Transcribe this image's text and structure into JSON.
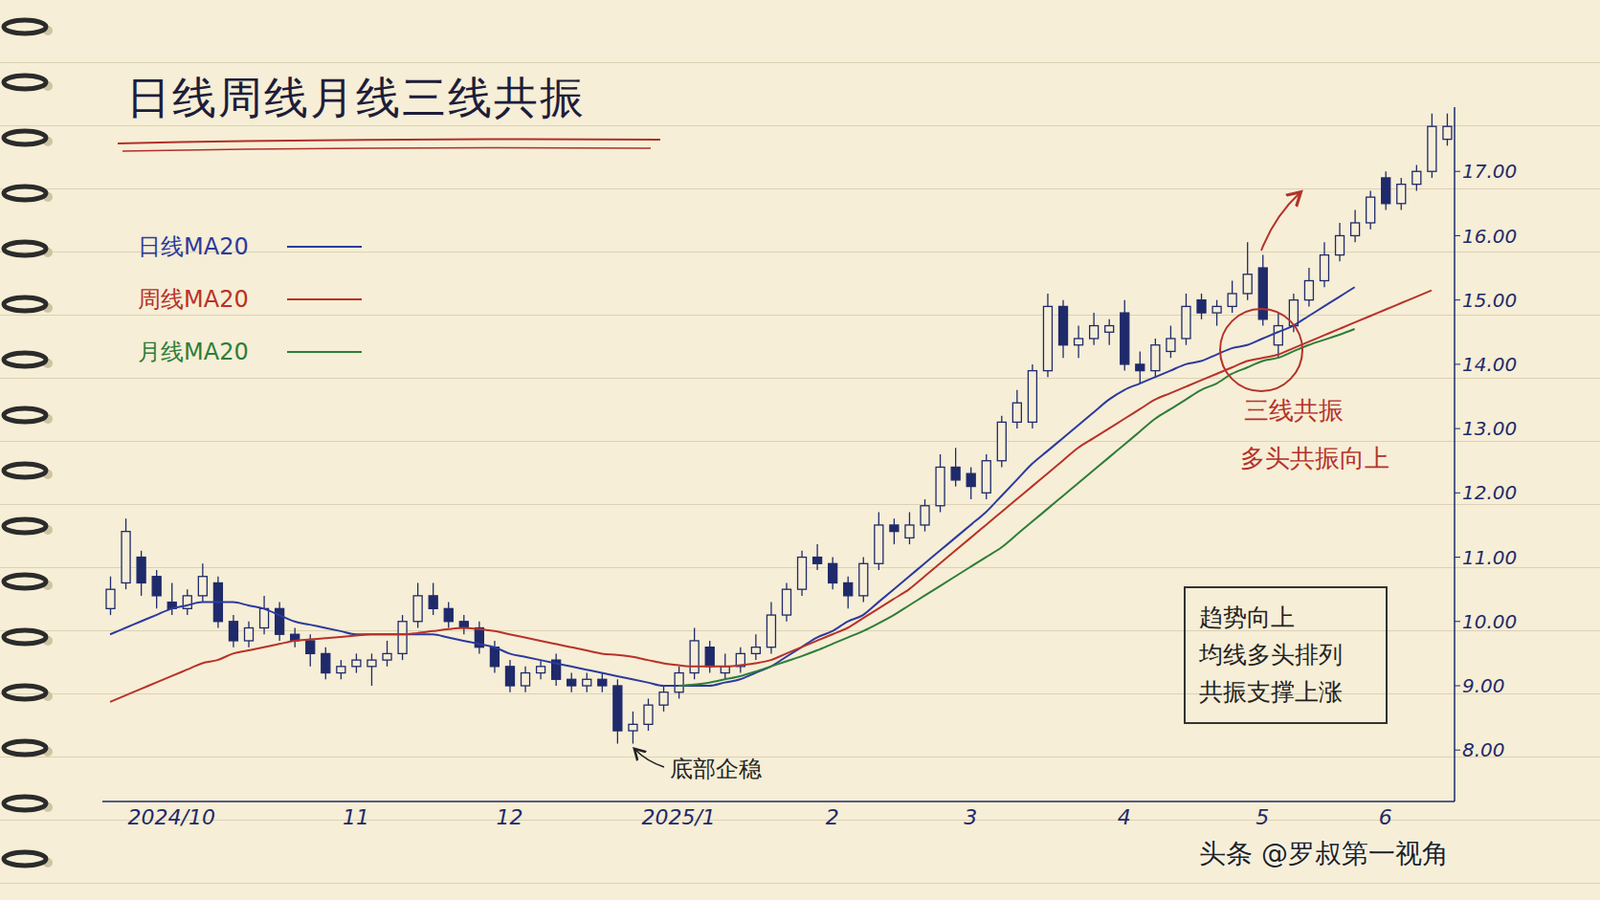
{
  "chart_data": {
    "type": "candlestick",
    "title": "日线周线月线三线共振",
    "categories": [
      null,
      null,
      null,
      null,
      "2024/10",
      null,
      null,
      null,
      null,
      null,
      null,
      null,
      null,
      null,
      null,
      null,
      "11",
      null,
      null,
      null,
      null,
      null,
      null,
      null,
      null,
      null,
      "12",
      null,
      null,
      null,
      null,
      null,
      null,
      null,
      null,
      null,
      null,
      "2025/1",
      null,
      null,
      null,
      null,
      null,
      null,
      null,
      null,
      null,
      "2",
      null,
      null,
      null,
      null,
      null,
      null,
      null,
      null,
      "3",
      null,
      null,
      null,
      null,
      null,
      null,
      null,
      null,
      null,
      "4",
      null,
      null,
      null,
      null,
      null,
      null,
      null,
      null,
      "5",
      null,
      null,
      null,
      null,
      null,
      null,
      null,
      "6",
      null,
      null,
      null,
      null
    ],
    "ohlc": {
      "color": "#1f2a6b",
      "open": [
        10.2,
        10.6,
        11.0,
        10.7,
        10.3,
        10.2,
        10.4,
        10.6,
        10.0,
        9.7,
        9.9,
        10.2,
        9.8,
        9.7,
        9.5,
        9.2,
        9.3,
        9.3,
        9.4,
        9.5,
        10.0,
        10.4,
        10.2,
        10.0,
        9.9,
        9.6,
        9.3,
        9.0,
        9.2,
        9.4,
        9.1,
        9.0,
        9.1,
        9.0,
        8.3,
        8.4,
        8.7,
        8.9,
        9.2,
        9.6,
        9.2,
        9.3,
        9.5,
        9.6,
        10.1,
        10.5,
        11.0,
        10.9,
        10.6,
        10.4,
        10.9,
        11.5,
        11.3,
        11.5,
        11.8,
        12.4,
        12.3,
        12.0,
        12.5,
        13.1,
        13.1,
        13.9,
        14.9,
        14.3,
        14.4,
        14.5,
        14.8,
        14.0,
        13.9,
        14.2,
        14.4,
        15.0,
        14.8,
        14.9,
        15.1,
        15.5,
        14.3,
        14.6,
        15.0,
        15.3,
        15.7,
        16.0,
        16.2,
        16.9,
        16.5,
        16.8,
        17.0,
        17.5
      ],
      "high": [
        10.7,
        11.6,
        11.1,
        10.8,
        10.6,
        10.5,
        10.9,
        10.7,
        10.1,
        10.0,
        10.4,
        10.3,
        9.9,
        9.8,
        9.6,
        9.4,
        9.5,
        9.5,
        9.7,
        10.1,
        10.6,
        10.6,
        10.3,
        10.1,
        10.0,
        9.7,
        9.4,
        9.3,
        9.4,
        9.5,
        9.2,
        9.2,
        9.2,
        9.1,
        8.6,
        8.8,
        9.0,
        9.3,
        9.9,
        9.7,
        9.5,
        9.6,
        9.8,
        10.3,
        10.6,
        11.1,
        11.2,
        11.0,
        10.7,
        11.0,
        11.7,
        11.6,
        11.7,
        11.9,
        12.6,
        12.7,
        12.4,
        12.6,
        13.2,
        13.6,
        14.0,
        15.1,
        15.0,
        14.6,
        14.8,
        14.7,
        15.0,
        14.2,
        14.4,
        14.6,
        15.1,
        15.1,
        15.0,
        15.3,
        15.9,
        15.7,
        14.8,
        15.1,
        15.5,
        15.9,
        16.2,
        16.4,
        16.7,
        17.0,
        16.9,
        17.1,
        17.9,
        17.9
      ],
      "low": [
        10.1,
        10.5,
        10.4,
        10.2,
        10.1,
        10.1,
        10.3,
        9.9,
        9.6,
        9.6,
        9.8,
        9.7,
        9.6,
        9.3,
        9.1,
        9.1,
        9.2,
        9.0,
        9.3,
        9.4,
        9.9,
        10.1,
        9.9,
        9.8,
        9.5,
        9.2,
        8.9,
        8.9,
        9.1,
        9.0,
        8.9,
        8.9,
        8.9,
        8.1,
        8.1,
        8.3,
        8.6,
        8.8,
        9.1,
        9.2,
        9.1,
        9.2,
        9.4,
        9.5,
        10.0,
        10.4,
        10.8,
        10.5,
        10.2,
        10.3,
        10.8,
        11.2,
        11.2,
        11.4,
        11.7,
        12.1,
        11.9,
        11.9,
        12.4,
        13.0,
        13.0,
        13.8,
        14.1,
        14.1,
        14.3,
        14.3,
        13.9,
        13.7,
        13.8,
        14.1,
        14.3,
        14.7,
        14.6,
        14.8,
        15.0,
        14.6,
        14.1,
        14.5,
        14.9,
        15.2,
        15.6,
        15.9,
        16.1,
        16.4,
        16.4,
        16.7,
        16.9,
        17.4
      ],
      "close": [
        10.5,
        11.4,
        10.6,
        10.4,
        10.2,
        10.4,
        10.7,
        10.0,
        9.7,
        9.9,
        10.2,
        9.8,
        9.7,
        9.5,
        9.2,
        9.3,
        9.4,
        9.4,
        9.5,
        10.0,
        10.4,
        10.2,
        10.0,
        9.9,
        9.6,
        9.3,
        9.0,
        9.2,
        9.3,
        9.1,
        9.0,
        9.1,
        9.0,
        8.3,
        8.4,
        8.7,
        8.9,
        9.2,
        9.7,
        9.3,
        9.3,
        9.5,
        9.6,
        10.1,
        10.5,
        11.0,
        10.9,
        10.6,
        10.4,
        10.9,
        11.5,
        11.4,
        11.5,
        11.8,
        12.4,
        12.2,
        12.1,
        12.5,
        13.1,
        13.4,
        13.9,
        14.9,
        14.3,
        14.4,
        14.6,
        14.6,
        14.0,
        13.9,
        14.3,
        14.4,
        14.9,
        14.8,
        14.9,
        15.1,
        15.4,
        14.7,
        14.6,
        15.0,
        15.3,
        15.7,
        16.0,
        16.2,
        16.6,
        16.5,
        16.8,
        17.0,
        17.7,
        17.7
      ]
    },
    "series": [
      {
        "name": "日线MA20",
        "color": "#2c3a9e",
        "values": [
          9.8,
          9.9,
          10.0,
          10.1,
          10.2,
          10.25,
          10.3,
          10.3,
          10.3,
          10.25,
          10.2,
          10.1,
          10.0,
          9.95,
          9.9,
          9.85,
          9.8,
          9.8,
          9.8,
          9.8,
          9.8,
          9.8,
          9.75,
          9.7,
          9.65,
          9.6,
          9.5,
          9.45,
          9.4,
          9.35,
          9.3,
          9.25,
          9.2,
          9.15,
          9.1,
          9.05,
          9.0,
          9.0,
          9.0,
          9.0,
          9.05,
          9.1,
          9.2,
          9.3,
          9.45,
          9.6,
          9.75,
          9.85,
          10.0,
          10.1,
          10.3,
          10.5,
          10.7,
          10.9,
          11.1,
          11.3,
          11.5,
          11.7,
          11.95,
          12.2,
          12.45,
          12.65,
          12.85,
          13.05,
          13.25,
          13.45,
          13.6,
          13.7,
          13.8,
          13.9,
          14.0,
          14.05,
          14.15,
          14.25,
          14.3,
          14.4,
          14.5,
          14.6,
          14.75,
          14.9,
          15.05,
          15.2,
          null,
          null,
          null,
          null,
          null,
          null
        ]
      },
      {
        "name": "周线MA20",
        "color": "#b8322a",
        "values": [
          8.75,
          8.85,
          8.95,
          9.05,
          9.15,
          9.25,
          9.35,
          9.4,
          9.5,
          9.55,
          9.6,
          9.65,
          9.7,
          9.72,
          9.74,
          9.76,
          9.78,
          9.8,
          9.8,
          9.8,
          9.82,
          9.85,
          9.88,
          9.9,
          9.88,
          9.85,
          9.8,
          9.75,
          9.7,
          9.65,
          9.6,
          9.55,
          9.5,
          9.48,
          9.45,
          9.4,
          9.35,
          9.32,
          9.3,
          9.3,
          9.3,
          9.32,
          9.35,
          9.4,
          9.5,
          9.6,
          9.7,
          9.8,
          9.9,
          10.05,
          10.2,
          10.35,
          10.5,
          10.7,
          10.9,
          11.1,
          11.3,
          11.5,
          11.7,
          11.9,
          12.1,
          12.3,
          12.5,
          12.7,
          12.85,
          13.0,
          13.15,
          13.3,
          13.45,
          13.55,
          13.65,
          13.75,
          13.85,
          13.95,
          14.05,
          14.1,
          14.15,
          14.25,
          14.35,
          14.45,
          14.55,
          14.65,
          14.75,
          14.85,
          14.95,
          15.05,
          15.15,
          null
        ]
      },
      {
        "name": "月线MA20",
        "color": "#2e7d3a",
        "values": [
          null,
          null,
          null,
          null,
          null,
          null,
          null,
          null,
          null,
          null,
          null,
          null,
          null,
          null,
          null,
          null,
          null,
          null,
          null,
          null,
          null,
          null,
          null,
          null,
          null,
          null,
          null,
          null,
          null,
          null,
          null,
          null,
          null,
          null,
          null,
          null,
          null,
          9.0,
          9.02,
          9.05,
          9.1,
          9.15,
          9.22,
          9.3,
          9.38,
          9.46,
          9.55,
          9.65,
          9.75,
          9.85,
          9.97,
          10.1,
          10.25,
          10.4,
          10.55,
          10.7,
          10.85,
          11.0,
          11.15,
          11.35,
          11.55,
          11.75,
          11.95,
          12.15,
          12.35,
          12.55,
          12.75,
          12.95,
          13.15,
          13.3,
          13.45,
          13.6,
          13.7,
          13.85,
          13.95,
          14.05,
          14.1,
          14.2,
          14.3,
          14.38,
          14.46,
          14.55,
          null,
          null,
          null,
          null,
          null,
          null
        ]
      }
    ],
    "ylim": [
      7.2,
      18
    ],
    "yticks": [
      {
        "value": 8,
        "label": "8.00"
      },
      {
        "value": 9,
        "label": "9.00"
      },
      {
        "value": 10,
        "label": "10.00"
      },
      {
        "value": 11,
        "label": "11.00"
      },
      {
        "value": 12,
        "label": "12.00"
      },
      {
        "value": 13,
        "label": "13.00"
      },
      {
        "value": 14,
        "label": "14.00"
      },
      {
        "value": 15,
        "label": "15.00"
      },
      {
        "value": 16,
        "label": "16.00"
      },
      {
        "value": 17,
        "label": "17.00"
      }
    ],
    "grid": false,
    "legend": "upper left",
    "annotations": [
      "三线共振",
      "多头共振向上",
      "底部企稳"
    ],
    "text_box": [
      "趋势向上",
      "均线多头排列",
      "共振支撑上涨"
    ],
    "watermark": "头条 @罗叔第一视角"
  }
}
